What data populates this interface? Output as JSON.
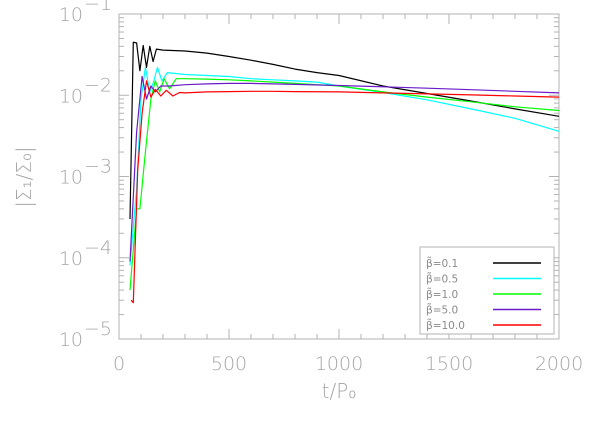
{
  "chart_data": {
    "type": "line",
    "x_scale": "linear",
    "y_scale": "log",
    "xlim": [
      0,
      2000
    ],
    "ylim": [
      1e-05,
      0.1
    ],
    "xlabel": "t/P₀",
    "ylabel": "|Σ₁/Σ₀|",
    "x_ticks": [
      "0",
      "500",
      "1000",
      "1500",
      "2000"
    ],
    "y_ticks": [
      {
        "value": 1e-05,
        "base": "10",
        "exp": "−5"
      },
      {
        "value": 0.0001,
        "base": "10",
        "exp": "−4"
      },
      {
        "value": 0.001,
        "base": "10",
        "exp": "−3"
      },
      {
        "value": 0.01,
        "base": "10",
        "exp": "−2"
      },
      {
        "value": 0.1,
        "base": "10",
        "exp": "−1"
      }
    ],
    "legend_position": "bottom-right",
    "grid": false,
    "series": [
      {
        "name": "β̃=0.1",
        "color": "#000000",
        "points": [
          [
            50,
            0.0003
          ],
          [
            65,
            0.045
          ],
          [
            80,
            0.044
          ],
          [
            95,
            0.02
          ],
          [
            110,
            0.041
          ],
          [
            125,
            0.022
          ],
          [
            140,
            0.04
          ],
          [
            155,
            0.026
          ],
          [
            170,
            0.037
          ],
          [
            200,
            0.036
          ],
          [
            300,
            0.035
          ],
          [
            400,
            0.033
          ],
          [
            500,
            0.03
          ],
          [
            600,
            0.027
          ],
          [
            700,
            0.024
          ],
          [
            800,
            0.021
          ],
          [
            900,
            0.019
          ],
          [
            1000,
            0.0175
          ],
          [
            1200,
            0.013
          ],
          [
            1400,
            0.0105
          ],
          [
            1600,
            0.0085
          ],
          [
            1800,
            0.0068
          ],
          [
            2000,
            0.0055
          ]
        ]
      },
      {
        "name": "β̃=0.5",
        "color": "#00ffff",
        "points": [
          [
            50,
            8e-05
          ],
          [
            80,
            0.0007
          ],
          [
            100,
            0.009
          ],
          [
            120,
            0.022
          ],
          [
            140,
            0.011
          ],
          [
            155,
            0.014
          ],
          [
            175,
            0.022
          ],
          [
            195,
            0.015
          ],
          [
            220,
            0.019
          ],
          [
            300,
            0.018
          ],
          [
            400,
            0.0175
          ],
          [
            500,
            0.017
          ],
          [
            600,
            0.016
          ],
          [
            700,
            0.0155
          ],
          [
            800,
            0.015
          ],
          [
            900,
            0.0145
          ],
          [
            1000,
            0.013
          ],
          [
            1200,
            0.0108
          ],
          [
            1400,
            0.0088
          ],
          [
            1600,
            0.0068
          ],
          [
            1800,
            0.0052
          ],
          [
            2000,
            0.0036
          ]
        ]
      },
      {
        "name": "β̃=1.0",
        "color": "#00ff00",
        "points": [
          [
            50,
            4e-05
          ],
          [
            80,
            0.0004
          ],
          [
            95,
            0.0004
          ],
          [
            120,
            0.002
          ],
          [
            145,
            0.009
          ],
          [
            165,
            0.015
          ],
          [
            185,
            0.011
          ],
          [
            205,
            0.016
          ],
          [
            230,
            0.012
          ],
          [
            260,
            0.016
          ],
          [
            300,
            0.016
          ],
          [
            400,
            0.0158
          ],
          [
            500,
            0.0155
          ],
          [
            600,
            0.015
          ],
          [
            700,
            0.0145
          ],
          [
            800,
            0.014
          ],
          [
            900,
            0.0135
          ],
          [
            1000,
            0.013
          ],
          [
            1200,
            0.011
          ],
          [
            1400,
            0.0095
          ],
          [
            1600,
            0.0083
          ],
          [
            1800,
            0.0072
          ],
          [
            2000,
            0.0065
          ]
        ]
      },
      {
        "name": "β̃=5.0",
        "color": "#6a1bc8",
        "points": [
          [
            50,
            9e-05
          ],
          [
            80,
            0.0035
          ],
          [
            105,
            0.017
          ],
          [
            125,
            0.009
          ],
          [
            145,
            0.013
          ],
          [
            165,
            0.011
          ],
          [
            190,
            0.013
          ],
          [
            230,
            0.013
          ],
          [
            300,
            0.0135
          ],
          [
            400,
            0.0138
          ],
          [
            500,
            0.014
          ],
          [
            600,
            0.014
          ],
          [
            700,
            0.0138
          ],
          [
            800,
            0.0136
          ],
          [
            1000,
            0.0132
          ],
          [
            1200,
            0.0127
          ],
          [
            1400,
            0.0122
          ],
          [
            1600,
            0.0117
          ],
          [
            1800,
            0.0112
          ],
          [
            2000,
            0.0107
          ]
        ]
      },
      {
        "name": "β̃=10.0",
        "color": "#ff0000",
        "points": [
          [
            55,
            3e-05
          ],
          [
            65,
            2.8e-05
          ],
          [
            85,
            0.0012
          ],
          [
            105,
            0.006
          ],
          [
            125,
            0.015
          ],
          [
            145,
            0.0095
          ],
          [
            165,
            0.0118
          ],
          [
            190,
            0.0098
          ],
          [
            215,
            0.0115
          ],
          [
            245,
            0.0098
          ],
          [
            275,
            0.0108
          ],
          [
            300,
            0.0107
          ],
          [
            400,
            0.011
          ],
          [
            500,
            0.0111
          ],
          [
            600,
            0.0112
          ],
          [
            700,
            0.0112
          ],
          [
            800,
            0.0111
          ],
          [
            1000,
            0.011
          ],
          [
            1200,
            0.0107
          ],
          [
            1400,
            0.0104
          ],
          [
            1600,
            0.0101
          ],
          [
            1800,
            0.0098
          ],
          [
            2000,
            0.0095
          ]
        ]
      }
    ]
  }
}
